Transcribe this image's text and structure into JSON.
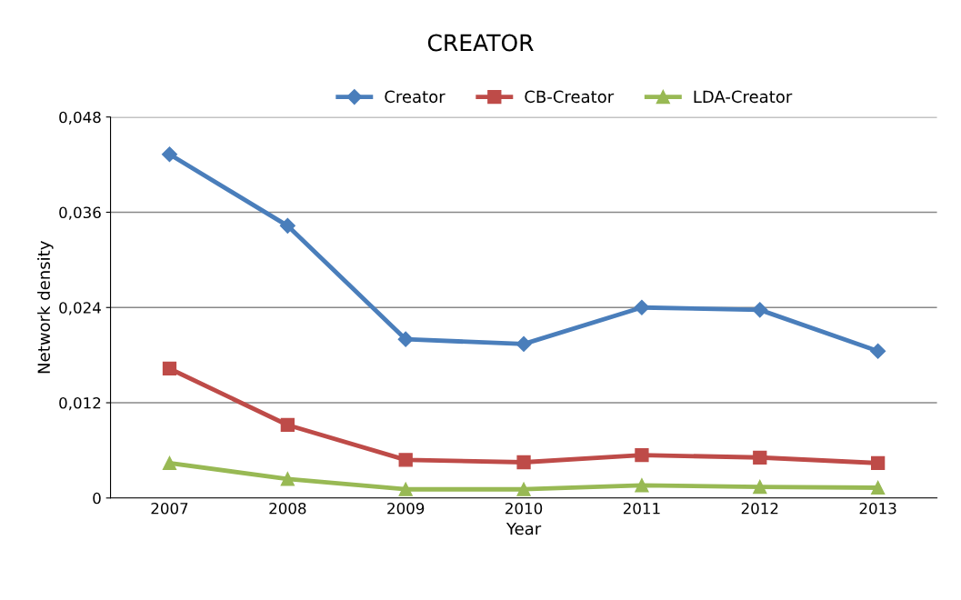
{
  "chart_data": {
    "type": "line",
    "title": "CREATOR",
    "xlabel": "Year",
    "ylabel": "Network density",
    "categories": [
      "2007",
      "2008",
      "2009",
      "2010",
      "2011",
      "2012",
      "2013"
    ],
    "series": [
      {
        "name": "Creator",
        "color": "#4a7ebb",
        "marker": "diamond",
        "values": [
          0.0433,
          0.0343,
          0.02,
          0.0194,
          0.024,
          0.0237,
          0.0185
        ]
      },
      {
        "name": "CB-Creator",
        "color": "#be4b48",
        "marker": "square",
        "values": [
          0.0163,
          0.0092,
          0.0048,
          0.0045,
          0.0054,
          0.0051,
          0.0044
        ]
      },
      {
        "name": "LDA-Creator",
        "color": "#98b954",
        "marker": "triangle",
        "values": [
          0.0044,
          0.0024,
          0.0011,
          0.0011,
          0.0016,
          0.0014,
          0.0013
        ]
      }
    ],
    "ylim": [
      0,
      0.048
    ],
    "yticks": [
      {
        "value": 0,
        "label": "0"
      },
      {
        "value": 0.012,
        "label": "0,012"
      },
      {
        "value": 0.024,
        "label": "0,024"
      },
      {
        "value": 0.036,
        "label": "0,036"
      },
      {
        "value": 0.048,
        "label": "0,048"
      }
    ],
    "grid": "y",
    "legend": "top",
    "line_style": "solid"
  }
}
